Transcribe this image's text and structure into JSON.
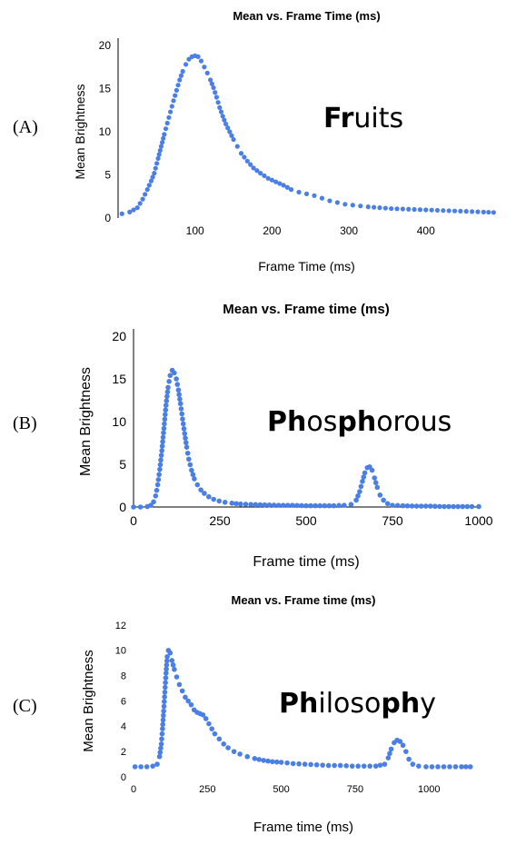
{
  "colors": {
    "marker": "#4a7fe6",
    "axis": "#000000",
    "text": "#000000"
  },
  "chart_data": [
    {
      "type": "scatter",
      "panel_label": "(A)",
      "title": "Mean vs. Frame Time (ms)",
      "xlabel": "Frame Time (ms)",
      "ylabel": "Mean Brightness",
      "xlim": [
        0,
        490
      ],
      "ylim": [
        0,
        20
      ],
      "xticks": [
        100,
        200,
        300,
        400
      ],
      "yticks": [
        0,
        5,
        10,
        15,
        20
      ],
      "grid": false,
      "word_parts": [
        {
          "text": "Fr",
          "bold": true
        },
        {
          "text": "uits",
          "bold": false
        }
      ],
      "series": [
        {
          "points": [
            [
              5,
              0.5
            ],
            [
              15,
              0.7
            ],
            [
              25,
              1.2
            ],
            [
              32,
              2.2
            ],
            [
              38,
              3.3
            ],
            [
              43,
              4.3
            ],
            [
              47,
              5.2
            ],
            [
              52,
              6.9
            ],
            [
              56,
              8.3
            ],
            [
              60,
              9.7
            ],
            [
              64,
              11.0
            ],
            [
              68,
              12.3
            ],
            [
              72,
              13.6
            ],
            [
              76,
              14.8
            ],
            [
              80,
              16.0
            ],
            [
              84,
              17.0
            ],
            [
              88,
              17.8
            ],
            [
              92,
              18.4
            ],
            [
              96,
              18.7
            ],
            [
              100,
              18.8
            ],
            [
              104,
              18.7
            ],
            [
              108,
              18.2
            ],
            [
              112,
              17.5
            ],
            [
              116,
              16.8
            ],
            [
              120,
              16.0
            ],
            [
              124,
              15.1
            ],
            [
              128,
              14.0
            ],
            [
              132,
              12.8
            ],
            [
              136,
              11.8
            ],
            [
              140,
              10.9
            ],
            [
              145,
              10.0
            ],
            [
              150,
              9.1
            ],
            [
              155,
              8.3
            ],
            [
              160,
              7.5
            ],
            [
              168,
              6.6
            ],
            [
              176,
              5.8
            ],
            [
              185,
              5.2
            ],
            [
              195,
              4.6
            ],
            [
              205,
              4.2
            ],
            [
              215,
              3.8
            ],
            [
              225,
              3.3
            ],
            [
              235,
              3.0
            ],
            [
              245,
              2.8
            ],
            [
              255,
              2.6
            ],
            [
              265,
              2.3
            ],
            [
              275,
              2.0
            ],
            [
              285,
              1.8
            ],
            [
              295,
              1.6
            ],
            [
              305,
              1.5
            ],
            [
              315,
              1.4
            ],
            [
              325,
              1.3
            ],
            [
              340,
              1.2
            ],
            [
              355,
              1.1
            ],
            [
              370,
              1.05
            ],
            [
              385,
              1.0
            ],
            [
              400,
              0.95
            ],
            [
              415,
              0.9
            ],
            [
              430,
              0.85
            ],
            [
              445,
              0.8
            ],
            [
              460,
              0.75
            ],
            [
              475,
              0.7
            ],
            [
              488,
              0.65
            ]
          ]
        }
      ]
    },
    {
      "type": "scatter",
      "panel_label": "(B)",
      "title": "Mean vs. Frame time (ms)",
      "xlabel": "Frame time (ms)",
      "ylabel": "Mean Brightness",
      "xlim": [
        0,
        1000
      ],
      "ylim": [
        0,
        20
      ],
      "xticks": [
        0,
        250,
        500,
        750,
        1000
      ],
      "yticks": [
        0,
        5,
        10,
        15,
        20
      ],
      "grid": false,
      "word_parts": [
        {
          "text": "Ph",
          "bold": true
        },
        {
          "text": "os",
          "bold": false
        },
        {
          "text": "ph",
          "bold": true
        },
        {
          "text": "orous",
          "bold": false
        }
      ],
      "series": [
        {
          "points": [
            [
              0,
              0.0
            ],
            [
              20,
              0.0
            ],
            [
              40,
              0.05
            ],
            [
              50,
              0.2
            ],
            [
              58,
              0.6
            ],
            [
              64,
              1.3
            ],
            [
              70,
              2.6
            ],
            [
              76,
              4.4
            ],
            [
              82,
              6.6
            ],
            [
              88,
              9.2
            ],
            [
              94,
              11.9
            ],
            [
              100,
              14.0
            ],
            [
              106,
              15.4
            ],
            [
              112,
              16.0
            ],
            [
              118,
              15.7
            ],
            [
              124,
              15.0
            ],
            [
              130,
              13.7
            ],
            [
              136,
              12.1
            ],
            [
              142,
              10.3
            ],
            [
              148,
              8.6
            ],
            [
              154,
              7.0
            ],
            [
              160,
              5.6
            ],
            [
              168,
              4.3
            ],
            [
              176,
              3.3
            ],
            [
              185,
              2.6
            ],
            [
              195,
              2.0
            ],
            [
              205,
              1.6
            ],
            [
              218,
              1.2
            ],
            [
              232,
              0.9
            ],
            [
              248,
              0.7
            ],
            [
              265,
              0.55
            ],
            [
              285,
              0.45
            ],
            [
              310,
              0.35
            ],
            [
              340,
              0.3
            ],
            [
              380,
              0.25
            ],
            [
              420,
              0.2
            ],
            [
              460,
              0.2
            ],
            [
              500,
              0.15
            ],
            [
              540,
              0.15
            ],
            [
              580,
              0.15
            ],
            [
              610,
              0.2
            ],
            [
              630,
              0.3
            ],
            [
              645,
              0.8
            ],
            [
              655,
              1.8
            ],
            [
              663,
              3.0
            ],
            [
              670,
              4.0
            ],
            [
              677,
              4.6
            ],
            [
              684,
              4.7
            ],
            [
              691,
              4.3
            ],
            [
              698,
              3.4
            ],
            [
              706,
              2.3
            ],
            [
              714,
              1.4
            ],
            [
              724,
              0.8
            ],
            [
              736,
              0.4
            ],
            [
              750,
              0.2
            ],
            [
              780,
              0.15
            ],
            [
              820,
              0.1
            ],
            [
              860,
              0.1
            ],
            [
              900,
              0.05
            ],
            [
              940,
              0.05
            ],
            [
              980,
              0.05
            ],
            [
              1000,
              0.05
            ]
          ]
        }
      ]
    },
    {
      "type": "scatter",
      "panel_label": "(C)",
      "title": "Mean vs. Frame time (ms)",
      "xlabel": "Frame time (ms)",
      "ylabel": "Mean Brightness",
      "xlim": [
        0,
        1150
      ],
      "ylim": [
        0,
        12
      ],
      "xticks": [
        0,
        250,
        500,
        750,
        1000
      ],
      "yticks": [
        0,
        2,
        4,
        6,
        8,
        10,
        12
      ],
      "grid": false,
      "word_parts": [
        {
          "text": "Ph",
          "bold": true
        },
        {
          "text": "iloso",
          "bold": false
        },
        {
          "text": "ph",
          "bold": true
        },
        {
          "text": "y",
          "bold": false
        }
      ],
      "series": [
        {
          "points": [
            [
              5,
              0.8
            ],
            [
              25,
              0.8
            ],
            [
              45,
              0.8
            ],
            [
              65,
              0.85
            ],
            [
              80,
              1.0
            ],
            [
              88,
              1.6
            ],
            [
              94,
              2.6
            ],
            [
              98,
              3.8
            ],
            [
              102,
              5.2
            ],
            [
              106,
              6.7
            ],
            [
              110,
              8.2
            ],
            [
              114,
              9.5
            ],
            [
              118,
              10.0
            ],
            [
              124,
              9.8
            ],
            [
              130,
              9.2
            ],
            [
              138,
              8.5
            ],
            [
              146,
              7.9
            ],
            [
              155,
              7.3
            ],
            [
              165,
              6.8
            ],
            [
              175,
              6.3
            ],
            [
              185,
              6.0
            ],
            [
              195,
              5.7
            ],
            [
              205,
              5.3
            ],
            [
              215,
              5.1
            ],
            [
              225,
              5.0
            ],
            [
              235,
              4.9
            ],
            [
              245,
              4.6
            ],
            [
              255,
              4.2
            ],
            [
              265,
              3.8
            ],
            [
              275,
              3.4
            ],
            [
              290,
              3.0
            ],
            [
              305,
              2.6
            ],
            [
              320,
              2.3
            ],
            [
              340,
              2.0
            ],
            [
              360,
              1.8
            ],
            [
              385,
              1.6
            ],
            [
              410,
              1.45
            ],
            [
              440,
              1.3
            ],
            [
              470,
              1.2
            ],
            [
              500,
              1.15
            ],
            [
              540,
              1.05
            ],
            [
              580,
              1.0
            ],
            [
              620,
              0.95
            ],
            [
              660,
              0.9
            ],
            [
              700,
              0.9
            ],
            [
              740,
              0.85
            ],
            [
              780,
              0.85
            ],
            [
              820,
              0.85
            ],
            [
              850,
              1.0
            ],
            [
              862,
              1.5
            ],
            [
              872,
              2.2
            ],
            [
              882,
              2.7
            ],
            [
              892,
              2.9
            ],
            [
              902,
              2.8
            ],
            [
              912,
              2.5
            ],
            [
              922,
              2.0
            ],
            [
              932,
              1.4
            ],
            [
              945,
              1.0
            ],
            [
              965,
              0.85
            ],
            [
              990,
              0.8
            ],
            [
              1030,
              0.8
            ],
            [
              1070,
              0.8
            ],
            [
              1110,
              0.8
            ],
            [
              1140,
              0.8
            ]
          ]
        }
      ]
    }
  ]
}
